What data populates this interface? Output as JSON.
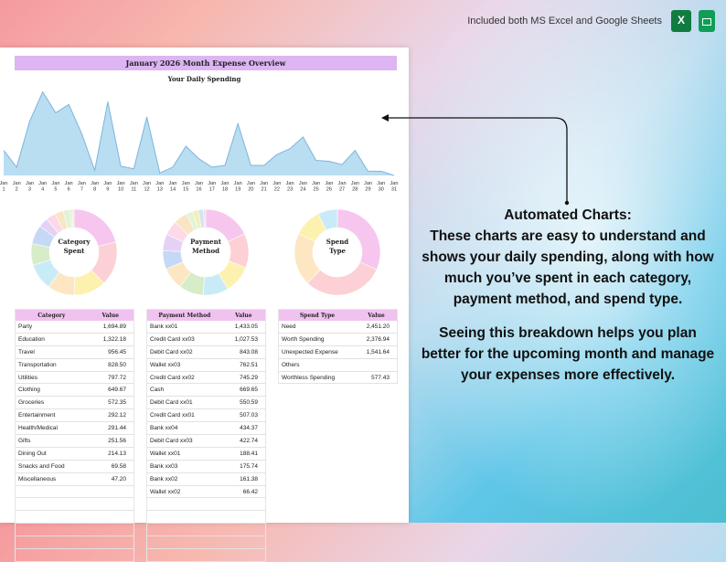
{
  "header": {
    "note": "Included both MS Excel and Google Sheets",
    "icons": [
      "excel-icon",
      "google-sheets-icon"
    ]
  },
  "sheet": {
    "title": "January 2026 Month Expense Overview",
    "daily_chart_title": "Your Daily Spending",
    "donut_centers": {
      "category": [
        "Category",
        "Spent"
      ],
      "payment": [
        "Payment",
        "Method"
      ],
      "spend": [
        "Spend",
        "Type"
      ]
    }
  },
  "chart_data": [
    {
      "type": "area",
      "title": "Your Daily Spending",
      "x": [
        "Jan 1",
        "Jan 2",
        "Jan 3",
        "Jan 4",
        "Jan 5",
        "Jan 6",
        "Jan 7",
        "Jan 8",
        "Jan 9",
        "Jan 10",
        "Jan 11",
        "Jan 12",
        "Jan 13",
        "Jan 14",
        "Jan 15",
        "Jan 16",
        "Jan 17",
        "Jan 18",
        "Jan 19",
        "Jan 20",
        "Jan 21",
        "Jan 22",
        "Jan 23",
        "Jan 24",
        "Jan 25",
        "Jan 26",
        "Jan 27",
        "Jan 28",
        "Jan 29",
        "Jan 30",
        "Jan 31"
      ],
      "values": [
        30,
        10,
        65,
        100,
        75,
        85,
        50,
        6,
        88,
        11,
        8,
        70,
        3,
        10,
        35,
        20,
        10,
        12,
        62,
        12,
        12,
        25,
        32,
        46,
        18,
        17,
        13,
        30,
        5,
        5,
        0
      ],
      "ylim": [
        0,
        105
      ],
      "color": "#a8d4ee",
      "line_color": "#7cb6dc"
    },
    {
      "type": "pie",
      "title": "Category Spent",
      "labels": [
        "Party",
        "Education",
        "Travel",
        "Transportation",
        "Utilities",
        "Clothing",
        "Groceries",
        "Entertainment",
        "Health/Medical",
        "Gifts",
        "Dining Out",
        "Snacks and Food",
        "Miscellaneous"
      ],
      "values": [
        1694.89,
        1322.18,
        956.45,
        828.5,
        797.72,
        649.67,
        572.35,
        292.12,
        291.44,
        251.56,
        214.13,
        69.58,
        47.2
      ],
      "colors": [
        "#f6c6ef",
        "#fcd0d4",
        "#fdf1b0",
        "#fde7c2",
        "#c9ebf8",
        "#d7ecc8",
        "#c5d8f5",
        "#e4d2f6",
        "#fdd8e8",
        "#f9e5c4",
        "#e0f4d8",
        "#f3f0b5",
        "#d5e5f3"
      ]
    },
    {
      "type": "pie",
      "title": "Payment Method",
      "labels": [
        "Bank xx01",
        "Credit Card xx03",
        "Debit Card xx02",
        "Wallet xx03",
        "Credit Card xx02",
        "Cash",
        "Debit Card xx01",
        "Credit Card xx01",
        "Bank xx04",
        "Debit Card xx03",
        "Wallet xx01",
        "Bank xx03",
        "Bank xx02",
        "Wallet xx02"
      ],
      "values": [
        1433.05,
        1027.53,
        843.08,
        762.51,
        745.29,
        669.65,
        550.59,
        507.03,
        434.37,
        422.74,
        188.41,
        175.74,
        161.38,
        66.42
      ],
      "colors": [
        "#f6c6ef",
        "#fcd0d4",
        "#fdf1b0",
        "#c9ebf8",
        "#d7ecc8",
        "#fde7c2",
        "#c5d8f5",
        "#e4d2f6",
        "#fdd8e8",
        "#f9e5c4",
        "#e0f4d8",
        "#f3f0b5",
        "#d5e5f3",
        "#f0d9ee"
      ]
    },
    {
      "type": "pie",
      "title": "Spend Type",
      "labels": [
        "Need",
        "Worth Spending",
        "Unexpected Expense",
        "Others",
        "Worthless Spending"
      ],
      "values": [
        2451.2,
        2376.94,
        1541.64,
        812.67,
        577.43
      ],
      "colors": [
        "#f6c6ef",
        "#fcd0d4",
        "#fde7c2",
        "#fdf1b0",
        "#c9ebf8"
      ]
    }
  ],
  "tables": {
    "category": {
      "headers": [
        "Category",
        "Value"
      ],
      "rows": [
        [
          "Party",
          "1,694.89"
        ],
        [
          "Education",
          "1,322.18"
        ],
        [
          "Travel",
          "956.45"
        ],
        [
          "Transportation",
          "828.50"
        ],
        [
          "Utilities",
          "797.72"
        ],
        [
          "Clothing",
          "649.67"
        ],
        [
          "Groceries",
          "572.35"
        ],
        [
          "Entertainment",
          "292.12"
        ],
        [
          "Health/Medical",
          "291.44"
        ],
        [
          "Gifts",
          "251.56"
        ],
        [
          "Dining Out",
          "214.13"
        ],
        [
          "Snacks and Food",
          "69.58"
        ],
        [
          "Miscellaneous",
          "47.20"
        ],
        [
          "",
          ""
        ],
        [
          "",
          ""
        ],
        [
          "",
          ""
        ],
        [
          "",
          ""
        ],
        [
          "",
          ""
        ],
        [
          "",
          ""
        ]
      ]
    },
    "payment": {
      "headers": [
        "Payment Method",
        "Value"
      ],
      "rows": [
        [
          "Bank xx01",
          "1,433.05"
        ],
        [
          "Credit Card xx03",
          "1,027.53"
        ],
        [
          "Debit Card xx02",
          "843.08"
        ],
        [
          "Wallet xx03",
          "762.51"
        ],
        [
          "Credit Card xx02",
          "745.29"
        ],
        [
          "Cash",
          "669.65"
        ],
        [
          "Debit Card xx01",
          "550.59"
        ],
        [
          "Credit Card xx01",
          "507.03"
        ],
        [
          "Bank xx04",
          "434.37"
        ],
        [
          "Debit Card xx03",
          "422.74"
        ],
        [
          "Wallet xx01",
          "188.41"
        ],
        [
          "Bank xx03",
          "175.74"
        ],
        [
          "Bank xx02",
          "161.38"
        ],
        [
          "Wallet xx02",
          "66.42"
        ],
        [
          "",
          ""
        ],
        [
          "",
          ""
        ],
        [
          "",
          ""
        ],
        [
          "",
          ""
        ],
        [
          "",
          ""
        ]
      ]
    },
    "spend": {
      "headers": [
        "Spend Type",
        "Value"
      ],
      "rows": [
        [
          "Need",
          "2,451.20"
        ],
        [
          "Worth Spending",
          "2,376.94"
        ],
        [
          "Unexpected Expense",
          "1,541.64"
        ],
        [
          "Others",
          ""
        ],
        [
          "Worthless Spending",
          "577.43"
        ]
      ]
    }
  },
  "callout": {
    "heading": "Automated Charts:",
    "line1": "These charts are easy to understand and",
    "line2": "shows your daily spending, along with how",
    "line3": "much you’ve spent in each category,",
    "line4": "payment method, and spend type.",
    "line5": "Seeing this breakdown helps you plan",
    "line6": "better for the upcoming month and manage",
    "line7": "your expenses more effectively."
  }
}
